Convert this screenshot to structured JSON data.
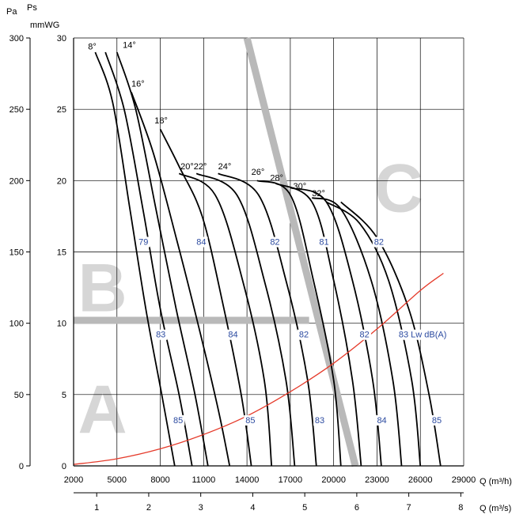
{
  "chart_data": {
    "type": "line",
    "axes": {
      "y_left_unit": "Pa",
      "y_right_unit": "Ps",
      "y_right_sub_unit": "mmWG",
      "x_unit_top": "Q (m³/h)",
      "x_unit_bottom": "Q (m³/s)",
      "y_pa_ticks": [
        "0",
        "50",
        "100",
        "150",
        "200",
        "250",
        "300"
      ],
      "y_mmwg_ticks": [
        "0",
        "5",
        "10",
        "15",
        "20",
        "25",
        "30"
      ],
      "x_m3h_ticks": [
        "2000",
        "5000",
        "8000",
        "11000",
        "14000",
        "17000",
        "20000",
        "23000",
        "26000",
        "29000"
      ],
      "x_m3s_ticks": [
        "1",
        "2",
        "3",
        "4",
        "5",
        "6",
        "7",
        "8"
      ],
      "xlim_m3h": [
        2000,
        29000
      ],
      "ylim_pa": [
        0,
        300
      ],
      "grid": true
    },
    "series": [
      {
        "name": "8°",
        "points": [
          [
            3500,
            290
          ],
          [
            4700,
            255
          ],
          [
            5900,
            180
          ],
          [
            7000,
            110
          ],
          [
            8100,
            50
          ],
          [
            9000,
            0
          ]
        ]
      },
      {
        "name": "",
        "points": [
          [
            4200,
            290
          ],
          [
            5500,
            250
          ],
          [
            6800,
            180
          ],
          [
            8000,
            110
          ],
          [
            9300,
            50
          ],
          [
            10200,
            0
          ]
        ]
      },
      {
        "name": "14°",
        "points": [
          [
            5000,
            290
          ],
          [
            6300,
            250
          ],
          [
            7700,
            180
          ],
          [
            9100,
            110
          ],
          [
            10400,
            50
          ],
          [
            11300,
            0
          ]
        ]
      },
      {
        "name": "16°",
        "points": [
          [
            6000,
            262
          ],
          [
            7500,
            220
          ],
          [
            9100,
            160
          ],
          [
            10600,
            100
          ],
          [
            12000,
            40
          ],
          [
            12800,
            0
          ]
        ]
      },
      {
        "name": "18°",
        "points": [
          [
            8000,
            236
          ],
          [
            9300,
            210
          ],
          [
            10900,
            175
          ],
          [
            12300,
            115
          ],
          [
            13600,
            50
          ],
          [
            14300,
            0
          ]
        ]
      },
      {
        "name": "20°",
        "points": [
          [
            9300,
            205
          ],
          [
            11800,
            190
          ],
          [
            13700,
            130
          ],
          [
            15200,
            60
          ],
          [
            15700,
            0
          ]
        ]
      },
      {
        "name": "22°",
        "points": [
          [
            10500,
            205
          ],
          [
            13300,
            190
          ],
          [
            15200,
            130
          ],
          [
            16700,
            60
          ],
          [
            17300,
            0
          ]
        ]
      },
      {
        "name": "24°",
        "points": [
          [
            12000,
            205
          ],
          [
            14800,
            190
          ],
          [
            16700,
            130
          ],
          [
            18200,
            60
          ],
          [
            18800,
            0
          ]
        ]
      },
      {
        "name": "26°",
        "points": [
          [
            14700,
            200
          ],
          [
            17000,
            190
          ],
          [
            18600,
            130
          ],
          [
            20000,
            60
          ],
          [
            20500,
            0
          ]
        ]
      },
      {
        "name": "28°",
        "points": [
          [
            16000,
            198
          ],
          [
            18500,
            185
          ],
          [
            20000,
            130
          ],
          [
            21300,
            60
          ],
          [
            21900,
            0
          ]
        ]
      },
      {
        "name": "30°",
        "points": [
          [
            17000,
            195
          ],
          [
            19500,
            185
          ],
          [
            21300,
            130
          ],
          [
            22700,
            60
          ],
          [
            23300,
            0
          ]
        ]
      },
      {
        "name": "32°",
        "points": [
          [
            18500,
            188
          ],
          [
            20500,
            180
          ],
          [
            22600,
            130
          ],
          [
            24100,
            60
          ],
          [
            24700,
            0
          ]
        ]
      },
      {
        "name": "",
        "points": [
          [
            19500,
            185
          ],
          [
            21800,
            170
          ],
          [
            23800,
            130
          ],
          [
            25400,
            60
          ],
          [
            26000,
            0
          ]
        ]
      },
      {
        "name": "",
        "points": [
          [
            20500,
            185
          ],
          [
            23000,
            160
          ],
          [
            25200,
            110
          ],
          [
            26600,
            50
          ],
          [
            27400,
            0
          ]
        ]
      }
    ],
    "system_curve": {
      "color": "#e53a2a",
      "points": [
        [
          2000,
          1
        ],
        [
          5000,
          5
        ],
        [
          8000,
          12
        ],
        [
          11000,
          22
        ],
        [
          14000,
          35
        ],
        [
          17000,
          52
        ],
        [
          20000,
          72
        ],
        [
          23000,
          96
        ],
        [
          26000,
          123
        ],
        [
          27600,
          135
        ]
      ]
    },
    "zone_boundaries": {
      "color": "#b9b9b9",
      "horizontal": {
        "y_pa": 102,
        "x_from": 2000,
        "x_to": 18300
      },
      "diagonal": {
        "from": [
          14000,
          300
        ],
        "to": [
          21500,
          0
        ]
      }
    },
    "zones": [
      {
        "label": "A",
        "x": 4000,
        "y": 40
      },
      {
        "label": "B",
        "x": 4000,
        "y": 125
      },
      {
        "label": "C",
        "x": 24500,
        "y": 195
      }
    ],
    "noise_labels": [
      {
        "text": "79",
        "x": 6500,
        "y": 155
      },
      {
        "text": "84",
        "x": 10500,
        "y": 155
      },
      {
        "text": "82",
        "x": 15600,
        "y": 155
      },
      {
        "text": "81",
        "x": 19000,
        "y": 155
      },
      {
        "text": "82",
        "x": 22800,
        "y": 155
      },
      {
        "text": "83",
        "x": 7700,
        "y": 90
      },
      {
        "text": "84",
        "x": 12700,
        "y": 90
      },
      {
        "text": "82",
        "x": 17600,
        "y": 90
      },
      {
        "text": "82",
        "x": 21800,
        "y": 90
      },
      {
        "text": "83 Lw dB(A)",
        "x": 24500,
        "y": 90
      },
      {
        "text": "85",
        "x": 8900,
        "y": 30
      },
      {
        "text": "85",
        "x": 13900,
        "y": 30
      },
      {
        "text": "83",
        "x": 18700,
        "y": 30
      },
      {
        "text": "84",
        "x": 23000,
        "y": 30
      },
      {
        "text": "85",
        "x": 26800,
        "y": 30
      }
    ],
    "angle_labels": [
      {
        "text": "8°",
        "x": 3000,
        "y": 292
      },
      {
        "text": "14°",
        "x": 5400,
        "y": 293
      },
      {
        "text": "16°",
        "x": 6000,
        "y": 266
      },
      {
        "text": "18°",
        "x": 7600,
        "y": 240
      },
      {
        "text": "20°22°",
        "x": 9400,
        "y": 208
      },
      {
        "text": "24°",
        "x": 12000,
        "y": 208
      },
      {
        "text": "26°",
        "x": 14300,
        "y": 204
      },
      {
        "text": "28°",
        "x": 15600,
        "y": 200
      },
      {
        "text": "30°",
        "x": 17200,
        "y": 194
      },
      {
        "text": "32°",
        "x": 18500,
        "y": 189
      }
    ]
  }
}
